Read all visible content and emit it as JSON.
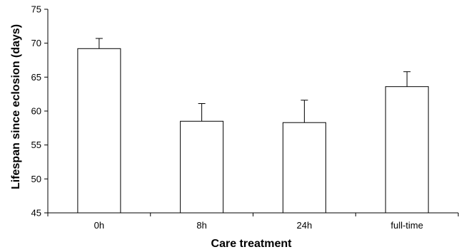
{
  "chart_data": {
    "type": "bar",
    "categories": [
      "0h",
      "8h",
      "24h",
      "full-time"
    ],
    "values": [
      69.2,
      58.5,
      58.3,
      63.6
    ],
    "error_upper": [
      1.5,
      2.6,
      3.3,
      2.2
    ],
    "xlabel": "Care treatment",
    "ylabel": "Lifespan since eclosion (days)",
    "ylim": [
      45,
      75
    ],
    "yticks": [
      45,
      50,
      55,
      60,
      65,
      70,
      75
    ],
    "grid": false,
    "legend": "none",
    "colors": {
      "bar_fill": "#ffffff",
      "bar_stroke": "#000000",
      "axis": "#000000"
    }
  }
}
